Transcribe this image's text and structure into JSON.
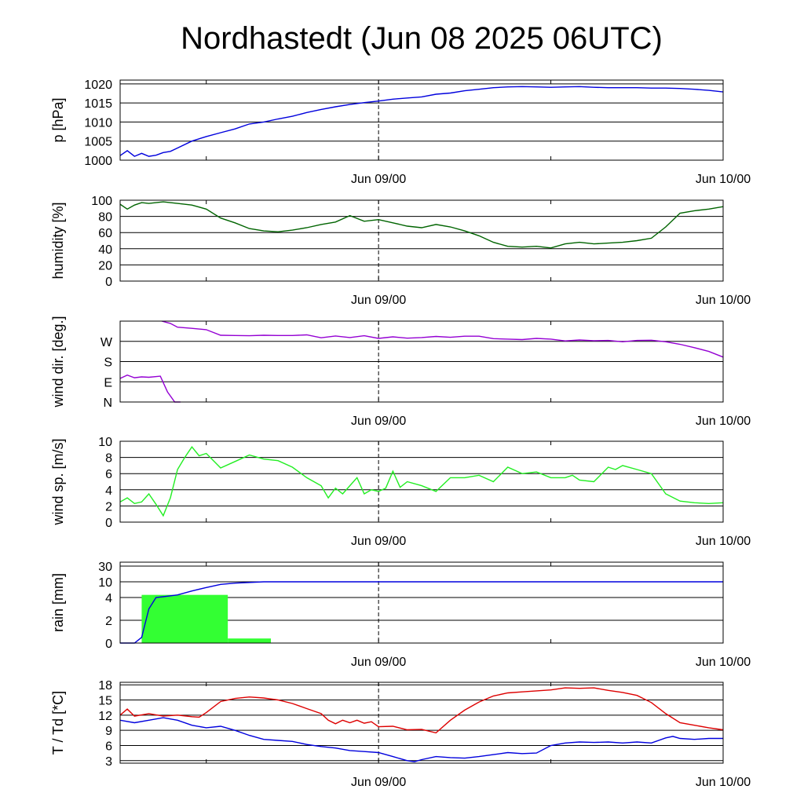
{
  "title": "Nordhastedt (Jun 08 2025 06UTC)",
  "colors": {
    "pressure": "#0000dd",
    "humidity": "#006400",
    "wind_dir": "#9400d3",
    "wind_speed": "#22ee22",
    "rain_bar": "#33ff33",
    "rain_total": "#0000dd",
    "temperature": "#dd0000",
    "dewpoint": "#0000dd"
  },
  "chart_data": [
    {
      "type": "line",
      "ylabel": "p [hPa]",
      "x_unit": "hours since Jun 08 2025 00UTC",
      "xlim": [
        6,
        48
      ],
      "x_ticks": [
        {
          "x": 24,
          "label": "Jun 09/00"
        },
        {
          "x": 48,
          "label": "Jun 10/00"
        }
      ],
      "ylim": [
        1000,
        1021
      ],
      "yticks": [
        {
          "v": 1000,
          "label": "1000"
        },
        {
          "v": 1005,
          "label": "1005"
        },
        {
          "v": 1010,
          "label": "1010"
        },
        {
          "v": 1015,
          "label": "1015"
        },
        {
          "v": 1020,
          "label": "1020"
        }
      ],
      "series": [
        {
          "key": "pressure",
          "x": [
            6,
            6.5,
            7,
            7.5,
            8,
            8.5,
            9,
            9.5,
            10,
            11,
            12,
            13,
            14,
            15,
            16,
            17,
            18,
            19,
            20,
            21,
            22,
            23,
            24,
            25,
            26,
            27,
            28,
            29,
            30,
            31,
            32,
            33,
            34,
            35,
            36,
            37,
            38,
            39,
            40,
            41,
            42,
            43,
            44,
            45,
            46,
            47,
            48
          ],
          "values": [
            1001.2,
            1002.5,
            1001.0,
            1001.8,
            1001.0,
            1001.3,
            1002.0,
            1002.3,
            1003.2,
            1005.0,
            1006.2,
            1007.2,
            1008.2,
            1009.5,
            1010.0,
            1010.8,
            1011.5,
            1012.5,
            1013.3,
            1014.0,
            1014.6,
            1015.1,
            1015.5,
            1016.0,
            1016.3,
            1016.6,
            1017.3,
            1017.6,
            1018.2,
            1018.6,
            1019.0,
            1019.2,
            1019.3,
            1019.2,
            1019.1,
            1019.2,
            1019.3,
            1019.1,
            1019.0,
            1019.0,
            1019.0,
            1018.9,
            1018.9,
            1018.8,
            1018.6,
            1018.3,
            1017.9
          ]
        }
      ]
    },
    {
      "type": "line",
      "ylabel": "humidity [%]",
      "x_unit": "hours since Jun 08 2025 00UTC",
      "xlim": [
        6,
        48
      ],
      "x_ticks": [
        {
          "x": 24,
          "label": "Jun 09/00"
        },
        {
          "x": 48,
          "label": "Jun 10/00"
        }
      ],
      "ylim": [
        0,
        100
      ],
      "yticks": [
        {
          "v": 0,
          "label": "0"
        },
        {
          "v": 20,
          "label": "20"
        },
        {
          "v": 40,
          "label": "40"
        },
        {
          "v": 60,
          "label": "60"
        },
        {
          "v": 80,
          "label": "80"
        },
        {
          "v": 100,
          "label": "100"
        }
      ],
      "series": [
        {
          "key": "humidity",
          "x": [
            6,
            6.5,
            7,
            7.5,
            8,
            9,
            10,
            11,
            12,
            13,
            14,
            15,
            16,
            17,
            18,
            19,
            20,
            21,
            22,
            23,
            24,
            25,
            26,
            27,
            28,
            29,
            30,
            31,
            32,
            33,
            34,
            35,
            36,
            37,
            38,
            39,
            40,
            41,
            42,
            43,
            44,
            45,
            46,
            47,
            48
          ],
          "values": [
            95,
            89,
            94,
            97,
            96,
            98,
            96,
            94,
            89,
            78,
            72,
            65,
            62,
            61,
            63,
            66,
            70,
            73,
            81,
            74,
            76,
            72,
            68,
            66,
            70,
            67,
            62,
            56,
            48,
            43,
            42,
            43,
            41,
            46,
            48,
            46,
            47,
            48,
            50,
            53,
            67,
            84,
            87,
            89,
            92
          ]
        }
      ]
    },
    {
      "type": "line",
      "ylabel": "wind dir. [deg.]",
      "x_unit": "hours since Jun 08 2025 00UTC",
      "xlim": [
        6,
        48
      ],
      "x_ticks": [
        {
          "x": 24,
          "label": "Jun 09/00"
        },
        {
          "x": 48,
          "label": "Jun 10/00"
        }
      ],
      "ylim": [
        0,
        360
      ],
      "yticks": [
        {
          "v": 0,
          "label": "N"
        },
        {
          "v": 90,
          "label": "E"
        },
        {
          "v": 180,
          "label": "S"
        },
        {
          "v": 270,
          "label": "W"
        }
      ],
      "series": [
        {
          "key": "wind_dir",
          "segments": [
            {
              "x": [
                6,
                6.5,
                7,
                7.5,
                8,
                8.8,
                9.3,
                9.8,
                10.2
              ],
              "values": [
                105,
                120,
                108,
                112,
                110,
                115,
                45,
                0,
                0
              ]
            },
            {
              "x": [
                8.9,
                9.5,
                10,
                11,
                12,
                13,
                14,
                15,
                16,
                17,
                18,
                19,
                20,
                21,
                22,
                23,
                24,
                25,
                26,
                27,
                28,
                29,
                30,
                31,
                32,
                33,
                34,
                35,
                36,
                37,
                38,
                39,
                40,
                41,
                42,
                43,
                44,
                45,
                46,
                47,
                48
              ],
              "values": [
                360,
                350,
                333,
                328,
                322,
                297,
                296,
                295,
                297,
                296,
                296,
                299,
                286,
                294,
                287,
                295,
                283,
                290,
                284,
                287,
                292,
                288,
                293,
                293,
                282,
                280,
                278,
                283,
                280,
                272,
                276,
                273,
                274,
                268,
                274,
                275,
                268,
                257,
                242,
                225,
                200
              ]
            }
          ]
        }
      ]
    },
    {
      "type": "line",
      "ylabel": "wind sp. [m/s]",
      "x_unit": "hours since Jun 08 2025 00UTC",
      "xlim": [
        6,
        48
      ],
      "x_ticks": [
        {
          "x": 24,
          "label": "Jun 09/00"
        },
        {
          "x": 48,
          "label": "Jun 10/00"
        }
      ],
      "ylim": [
        0,
        10
      ],
      "yticks": [
        {
          "v": 0,
          "label": "0"
        },
        {
          "v": 2,
          "label": "2"
        },
        {
          "v": 4,
          "label": "4"
        },
        {
          "v": 6,
          "label": "6"
        },
        {
          "v": 8,
          "label": "8"
        },
        {
          "v": 10,
          "label": "10"
        }
      ],
      "series": [
        {
          "key": "wind_speed",
          "x": [
            6,
            6.5,
            7,
            7.5,
            8,
            8.5,
            9,
            9.5,
            10,
            10.5,
            11,
            11.5,
            12,
            13,
            14,
            15,
            16,
            17,
            18,
            19,
            20,
            20.5,
            21,
            21.5,
            22,
            22.5,
            23,
            23.5,
            24,
            24.5,
            25,
            25.5,
            26,
            27,
            28,
            29,
            30,
            31,
            32,
            33,
            34,
            35,
            36,
            37,
            37.5,
            38,
            39,
            40,
            40.5,
            41,
            42,
            43,
            44,
            45,
            46,
            47,
            48
          ],
          "values": [
            2.5,
            3.0,
            2.3,
            2.5,
            3.5,
            2.2,
            0.8,
            3.0,
            6.5,
            8.0,
            9.3,
            8.2,
            8.5,
            6.7,
            7.5,
            8.3,
            7.8,
            7.6,
            6.8,
            5.5,
            4.5,
            3.0,
            4.2,
            3.5,
            4.5,
            5.5,
            3.5,
            4.0,
            3.8,
            4.2,
            6.3,
            4.3,
            5.0,
            4.5,
            3.8,
            5.5,
            5.5,
            5.8,
            5.0,
            6.8,
            6.0,
            6.2,
            5.5,
            5.5,
            5.8,
            5.2,
            5.0,
            6.8,
            6.5,
            7.0,
            6.5,
            6.0,
            3.5,
            2.6,
            2.4,
            2.3,
            2.4
          ]
        }
      ]
    },
    {
      "type": "bar",
      "ylabel": "rain [mm]",
      "x_unit": "hours since Jun 08 2025 00UTC",
      "xlim": [
        6,
        48
      ],
      "x_ticks": [
        {
          "x": 24,
          "label": "Jun 09/00"
        },
        {
          "x": 48,
          "label": "Jun 10/00"
        }
      ],
      "yticks": [
        {
          "v": 0,
          "label": "0"
        },
        {
          "v": 2,
          "label": "2"
        },
        {
          "v": 4,
          "label": "4"
        },
        {
          "v": 10,
          "label": "10"
        },
        {
          "v": 30,
          "label": "30"
        }
      ],
      "bars": [
        {
          "x_start": 7.5,
          "x_end": 13.5,
          "value": 5.0
        },
        {
          "x_start": 13.5,
          "x_end": 16.5,
          "value": 0.4
        }
      ],
      "series": [
        {
          "key": "rain_total",
          "x": [
            6,
            7,
            7.5,
            8,
            8.5,
            9,
            10,
            11,
            12,
            13,
            14,
            16,
            48
          ],
          "values": [
            0,
            0,
            0.5,
            3.0,
            4.0,
            4.3,
            5.0,
            6.5,
            7.8,
            9.0,
            9.5,
            10.0,
            10.0
          ]
        }
      ]
    },
    {
      "type": "line",
      "ylabel": "T / Td [*C]",
      "x_unit": "hours since Jun 08 2025 00UTC",
      "xlim": [
        6,
        48
      ],
      "x_ticks": [
        {
          "x": 24,
          "label": "Jun 09/00"
        },
        {
          "x": 48,
          "label": "Jun 10/00"
        }
      ],
      "ylim": [
        2.5,
        18.5
      ],
      "yticks": [
        {
          "v": 3,
          "label": "3"
        },
        {
          "v": 6,
          "label": "6"
        },
        {
          "v": 9,
          "label": "9"
        },
        {
          "v": 12,
          "label": "12"
        },
        {
          "v": 15,
          "label": "15"
        },
        {
          "v": 18,
          "label": "18"
        }
      ],
      "series": [
        {
          "key": "temperature",
          "x": [
            6,
            6.5,
            7,
            8,
            9,
            10,
            11,
            11.5,
            12,
            13,
            14,
            15,
            16,
            17,
            18,
            19,
            20,
            20.5,
            21,
            21.5,
            22,
            22.5,
            23,
            23.5,
            24,
            25,
            26,
            27,
            28,
            29,
            30,
            31,
            32,
            33,
            34,
            35,
            36,
            37,
            38,
            39,
            40,
            41,
            42,
            43,
            44,
            45,
            46,
            47,
            48
          ],
          "values": [
            12.0,
            13.2,
            11.8,
            12.3,
            11.8,
            12.0,
            11.7,
            11.6,
            12.5,
            14.7,
            15.3,
            15.6,
            15.4,
            15.0,
            14.3,
            13.3,
            12.3,
            11.0,
            10.3,
            11.0,
            10.5,
            11.0,
            10.4,
            10.7,
            9.7,
            9.8,
            9.1,
            9.2,
            8.5,
            11.0,
            13.0,
            14.6,
            15.8,
            16.4,
            16.6,
            16.8,
            17.0,
            17.4,
            17.3,
            17.4,
            16.9,
            16.5,
            15.9,
            14.5,
            12.3,
            10.5,
            10.0,
            9.5,
            9.1
          ]
        },
        {
          "key": "dewpoint",
          "x": [
            6,
            7,
            8,
            9,
            10,
            11,
            12,
            13,
            14,
            15,
            16,
            17,
            18,
            19,
            20,
            21,
            22,
            23,
            24,
            25,
            26,
            26.5,
            27,
            28,
            29,
            30,
            31,
            32,
            33,
            34,
            35,
            36,
            37,
            38,
            39,
            40,
            41,
            42,
            43,
            44,
            44.5,
            45,
            46,
            47,
            48
          ],
          "values": [
            11.0,
            10.5,
            11.0,
            11.5,
            11.0,
            10.0,
            9.5,
            9.8,
            9.0,
            8.0,
            7.2,
            7.0,
            6.8,
            6.2,
            5.8,
            5.5,
            5.0,
            4.8,
            4.6,
            3.8,
            3.0,
            2.8,
            3.2,
            3.8,
            3.6,
            3.5,
            3.8,
            4.2,
            4.6,
            4.4,
            4.5,
            6.0,
            6.5,
            6.7,
            6.6,
            6.7,
            6.5,
            6.7,
            6.5,
            7.5,
            7.8,
            7.4,
            7.2,
            7.4,
            7.4
          ]
        }
      ]
    }
  ]
}
